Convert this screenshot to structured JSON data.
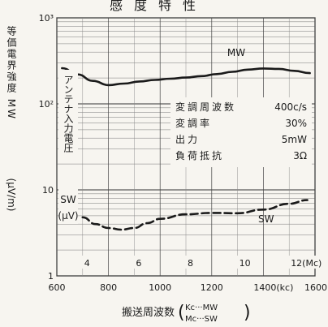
{
  "chart_data": {
    "type": "line",
    "title": "感度特性",
    "y_scale": "log",
    "ylim": [
      1,
      1000
    ],
    "y_ticks": [
      {
        "value": 1,
        "label": "1"
      },
      {
        "value": 10,
        "label": "10"
      },
      {
        "value": 100,
        "label": "10²"
      },
      {
        "value": 1000,
        "label": "10³"
      }
    ],
    "x_mw": {
      "range": [
        600,
        1600
      ],
      "ticks": [
        "600",
        "800",
        "1000",
        "1200",
        "1400(kc)",
        "1600"
      ]
    },
    "x_sw": {
      "range": [
        3,
        13
      ],
      "ticks": [
        "4",
        "6",
        "8",
        "10",
        "12(Mc)"
      ]
    },
    "xlabel_main": "搬送周波数",
    "xlabel_top": "Kc···MW",
    "xlabel_bottom": "Mc···SW",
    "ylabel_main": "等価電界強度 MW",
    "ylabel_unit": "(μV/m)",
    "ylabel_sw": [
      "アンテナ入力電圧",
      "SW",
      "(μV)"
    ],
    "conditions": [
      {
        "label": "変調周波数",
        "value": "400c/s"
      },
      {
        "label": "変調率",
        "value": "30%"
      },
      {
        "label": "出力",
        "value": "5mW"
      },
      {
        "label": "負荷抵抗",
        "value": "3Ω"
      }
    ],
    "series": [
      {
        "name": "MW",
        "axis": "kc",
        "line": "solid",
        "x": [
          620,
          680,
          740,
          800,
          860,
          920,
          980,
          1040,
          1100,
          1160,
          1220,
          1280,
          1340,
          1400,
          1460,
          1520,
          1580
        ],
        "y": [
          260,
          220,
          185,
          165,
          172,
          182,
          190,
          196,
          202,
          210,
          222,
          236,
          250,
          258,
          255,
          242,
          228
        ]
      },
      {
        "name": "SW",
        "axis": "Mc",
        "line": "dashed",
        "x": [
          4.0,
          4.5,
          5.0,
          5.5,
          6.0,
          6.5,
          7.0,
          8.0,
          9.0,
          10.0,
          11.0,
          12.0,
          12.7
        ],
        "y": [
          4.8,
          4.0,
          3.6,
          3.45,
          3.6,
          4.1,
          4.6,
          5.2,
          5.4,
          5.35,
          5.9,
          6.9,
          7.6
        ]
      }
    ]
  }
}
